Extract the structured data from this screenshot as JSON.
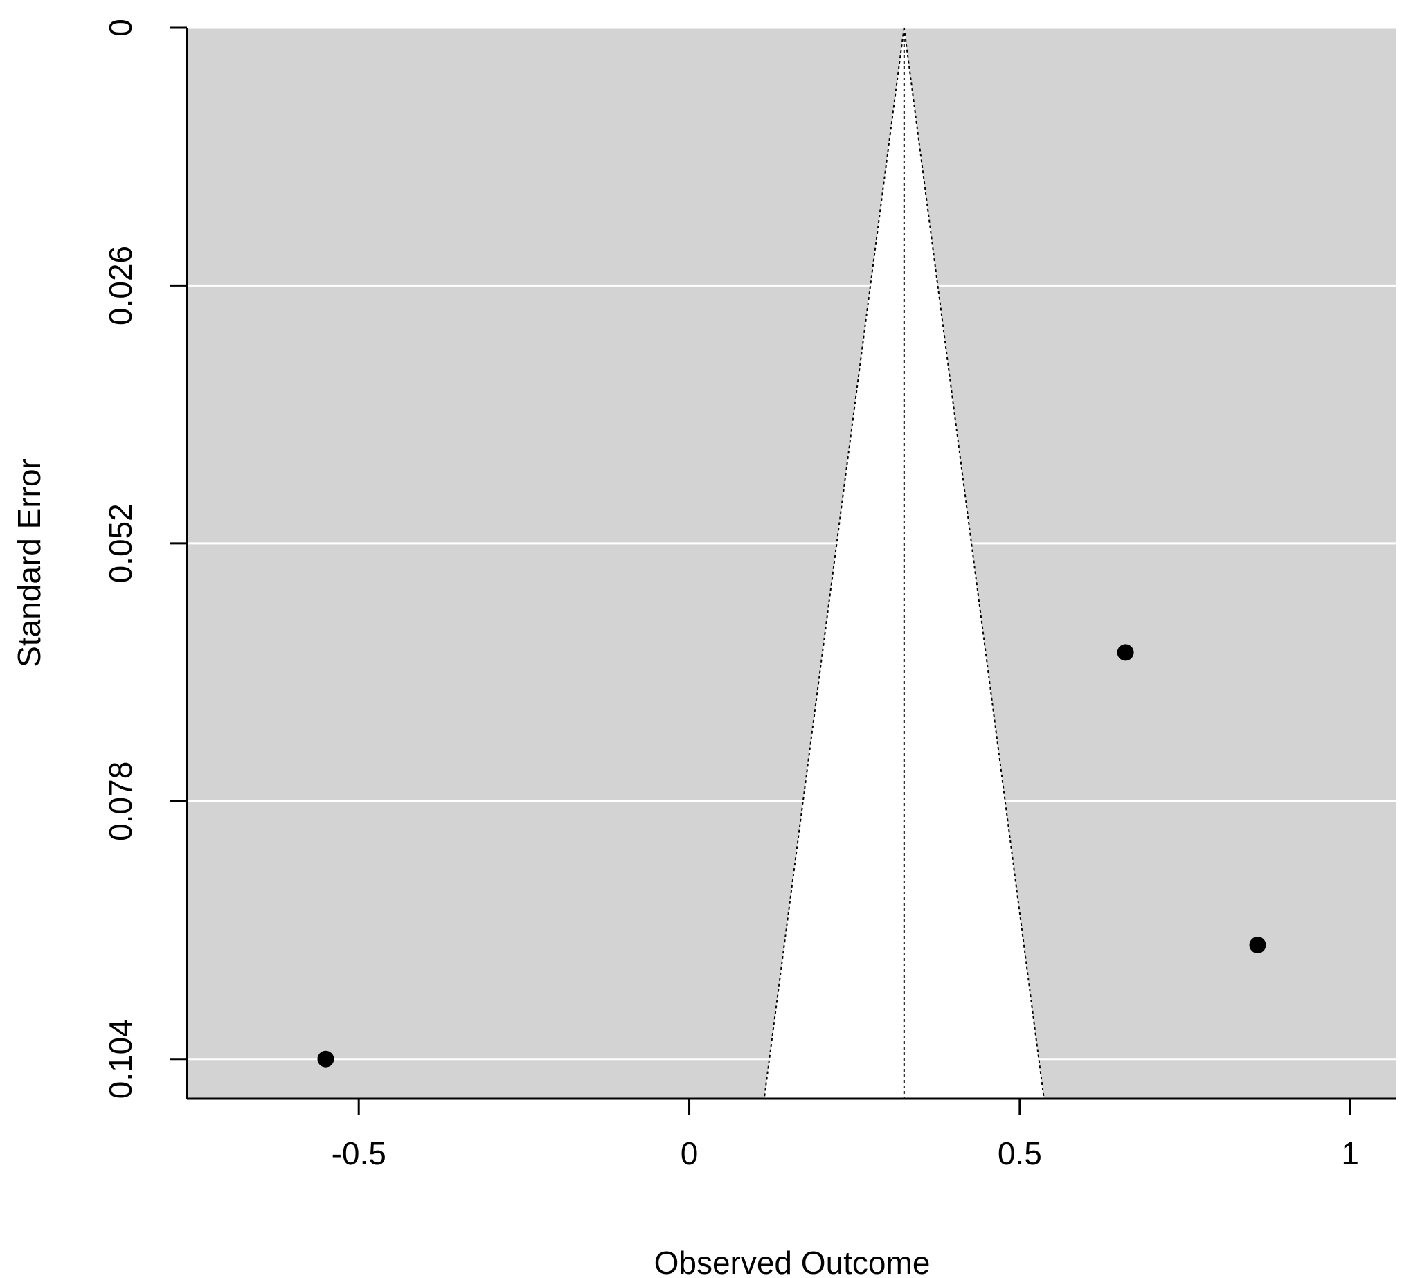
{
  "chart_data": {
    "type": "scatter",
    "subtype": "funnel",
    "title": "",
    "xlabel": "Observed Outcome",
    "ylabel": "Standard Error",
    "xlim": [
      -0.76,
      1.07
    ],
    "ylim": [
      0,
      0.108
    ],
    "y_reversed": true,
    "x_ticks": [
      -0.5,
      0,
      0.5,
      1
    ],
    "x_tick_labels": [
      "-0.5",
      "0",
      "0.5",
      "1"
    ],
    "y_ticks": [
      0,
      0.026,
      0.052,
      0.078,
      0.104
    ],
    "y_tick_labels": [
      "0",
      "0.026",
      "0.052",
      "0.078",
      "0.104"
    ],
    "grid": "horizontal",
    "background_color": "#d3d3d3",
    "funnel_fill_color": "#ffffff",
    "pooled_estimate": 0.325,
    "funnel_z": 1.96,
    "points": [
      {
        "x": -0.55,
        "y": 0.104
      },
      {
        "x": 0.66,
        "y": 0.063
      },
      {
        "x": 0.86,
        "y": 0.0925
      }
    ]
  }
}
